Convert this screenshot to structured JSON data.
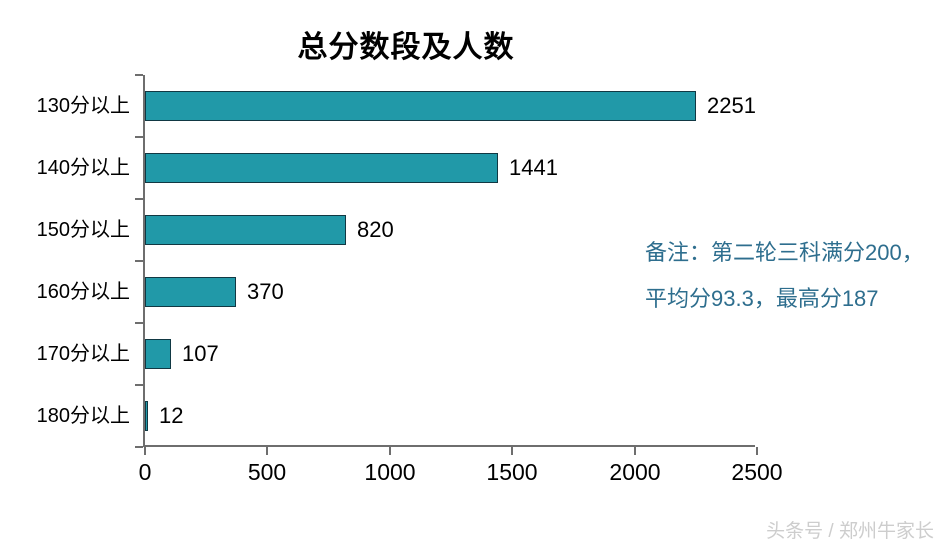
{
  "title": "总分数段及人数",
  "chart_data": {
    "type": "bar",
    "orientation": "horizontal",
    "title": "总分数段及人数",
    "categories": [
      "130分以上",
      "140分以上",
      "150分以上",
      "160分以上",
      "170分以上",
      "180分以上"
    ],
    "values": [
      2251,
      1441,
      820,
      370,
      107,
      12
    ],
    "data_labels": [
      "2251",
      "1441",
      "820",
      "370",
      "107",
      "12"
    ],
    "xlim": [
      0,
      2500
    ],
    "x_ticks": [
      "0",
      "500",
      "1000",
      "1500",
      "2000",
      "2500"
    ],
    "grid": false,
    "legend": "none",
    "bar_color": "#2199a8",
    "bar_border_color": "#113843",
    "axis_color": "#6e6e6e"
  },
  "annotation": {
    "line1": "备注：第二轮三科满分200，",
    "line2": "平均分93.3，最高分187",
    "color": "#2e6e8e"
  },
  "watermark": "头条号 / 郑州牛家长"
}
